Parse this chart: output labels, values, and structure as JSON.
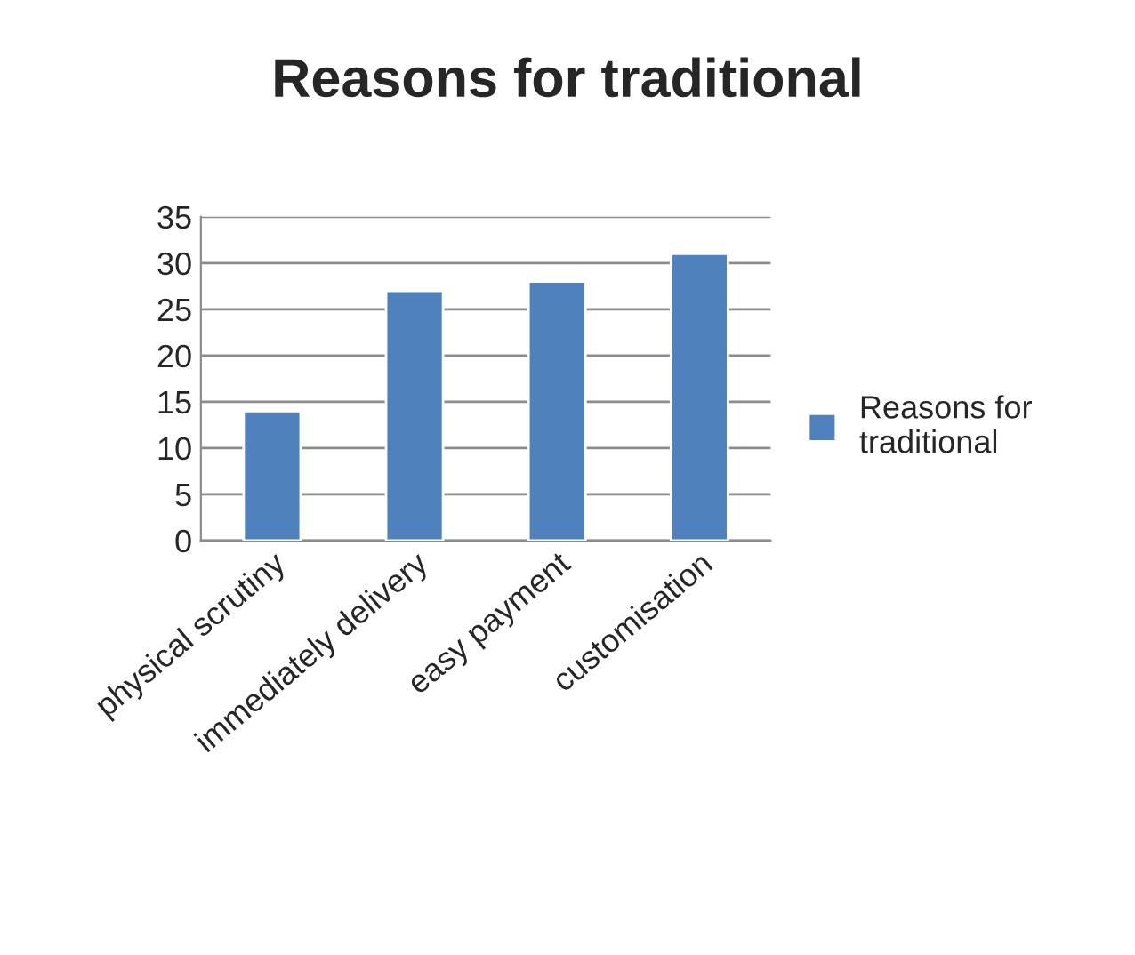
{
  "chart_data": {
    "type": "bar",
    "title": "Reasons for traditional",
    "categories": [
      "physical scrutiny",
      "immediately delivery",
      "easy payment",
      "customisation"
    ],
    "series": [
      {
        "name": "Reasons for traditional",
        "color": "#4f81bd",
        "values": [
          14,
          27,
          28,
          31
        ]
      }
    ],
    "ylim": [
      0,
      35
    ],
    "yticks": [
      0,
      5,
      10,
      15,
      20,
      25,
      30,
      35
    ],
    "grid": "y",
    "legend": "right"
  }
}
